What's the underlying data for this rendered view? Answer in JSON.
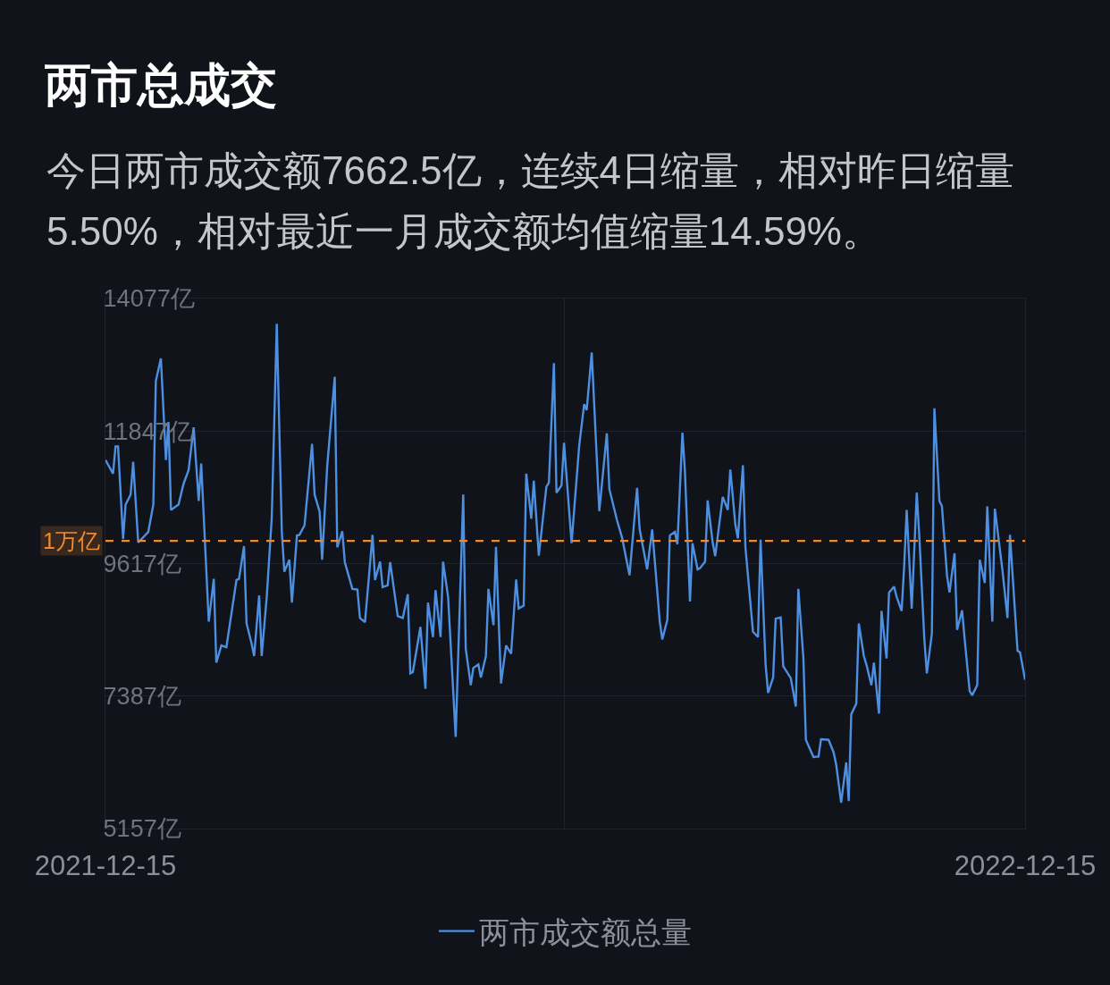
{
  "chart_data": {
    "type": "line",
    "title": "两市总成交",
    "subtitle": "今日两市成交额7662.5亿，连续4日缩量，相对昨日缩量5.50%，相对最近一月成交额均值缩量14.59%。",
    "x": [
      "2021-12-15",
      "2021-12-18",
      "2021-12-19",
      "2021-12-20",
      "2021-12-22",
      "2021-12-23",
      "2021-12-25",
      "2021-12-26",
      "2021-12-28",
      "2022-01-01",
      "2022-01-03",
      "2022-01-04",
      "2022-01-06",
      "2022-01-08",
      "2022-01-09",
      "2022-01-10",
      "2022-01-13",
      "2022-01-15",
      "2022-01-17",
      "2022-01-19",
      "2022-01-21",
      "2022-01-22",
      "2022-01-25",
      "2022-01-27",
      "2022-01-28",
      "2022-01-30",
      "2022-02-01",
      "2022-02-05",
      "2022-02-06",
      "2022-02-08",
      "2022-02-09",
      "2022-02-11",
      "2022-02-12",
      "2022-02-14",
      "2022-02-15",
      "2022-02-17",
      "2022-02-19",
      "2022-02-21",
      "2022-02-23",
      "2022-02-24",
      "2022-02-26",
      "2022-02-27",
      "2022-03-01",
      "2022-03-02",
      "2022-03-04",
      "2022-03-07",
      "2022-03-08",
      "2022-03-10",
      "2022-03-11",
      "2022-03-13",
      "2022-03-16",
      "2022-03-17",
      "2022-03-19",
      "2022-03-20",
      "2022-03-23",
      "2022-03-25",
      "2022-03-26",
      "2022-03-28",
      "2022-03-31",
      "2022-04-01",
      "2022-04-03",
      "2022-04-04",
      "2022-04-06",
      "2022-04-07",
      "2022-04-10",
      "2022-04-12",
      "2022-04-14",
      "2022-04-15",
      "2022-04-16",
      "2022-04-19",
      "2022-04-21",
      "2022-04-22",
      "2022-04-24",
      "2022-04-25",
      "2022-04-27",
      "2022-04-28",
      "2022-04-30",
      "2022-05-03",
      "2022-05-06",
      "2022-05-07",
      "2022-05-09",
      "2022-05-10",
      "2022-05-12",
      "2022-05-13",
      "2022-05-15",
      "2022-05-16",
      "2022-05-18",
      "2022-05-19",
      "2022-05-21",
      "2022-05-23",
      "2022-05-25",
      "2022-05-27",
      "2022-05-28",
      "2022-05-30",
      "2022-05-31",
      "2022-06-02",
      "2022-06-03",
      "2022-06-05",
      "2022-06-08",
      "2022-06-09",
      "2022-06-11",
      "2022-06-12",
      "2022-06-14",
      "2022-06-15",
      "2022-06-18",
      "2022-06-21",
      "2022-06-23",
      "2022-06-24",
      "2022-06-26",
      "2022-06-29",
      "2022-07-02",
      "2022-07-03",
      "2022-07-06",
      "2022-07-08",
      "2022-07-11",
      "2022-07-14",
      "2022-07-15",
      "2022-07-18",
      "2022-07-20",
      "2022-07-23",
      "2022-07-24",
      "2022-07-26",
      "2022-07-27",
      "2022-07-29",
      "2022-07-30",
      "2022-08-01",
      "2022-08-02",
      "2022-08-04",
      "2022-08-05",
      "2022-08-07",
      "2022-08-08",
      "2022-08-10",
      "2022-08-11",
      "2022-08-13",
      "2022-08-14",
      "2022-08-17",
      "2022-08-19",
      "2022-08-20",
      "2022-08-22",
      "2022-08-23",
      "2022-08-25",
      "2022-08-26",
      "2022-08-29",
      "2022-08-31",
      "2022-09-01",
      "2022-09-03",
      "2022-09-04",
      "2022-09-06",
      "2022-09-07",
      "2022-09-09",
      "2022-09-10",
      "2022-09-13",
      "2022-09-15",
      "2022-09-16",
      "2022-09-18",
      "2022-09-19",
      "2022-09-22",
      "2022-09-24",
      "2022-09-25",
      "2022-09-28",
      "2022-09-30",
      "2022-10-01",
      "2022-10-03",
      "2022-10-05",
      "2022-10-06",
      "2022-10-07",
      "2022-10-09",
      "2022-10-10",
      "2022-10-12",
      "2022-10-13",
      "2022-10-15",
      "2022-10-16",
      "2022-10-18",
      "2022-10-19",
      "2022-10-21",
      "2022-10-22",
      "2022-10-24",
      "2022-10-25",
      "2022-10-27",
      "2022-10-28",
      "2022-10-29",
      "2022-10-31",
      "2022-11-02",
      "2022-11-03",
      "2022-11-05",
      "2022-11-06",
      "2022-11-08",
      "2022-11-09",
      "2022-11-11",
      "2022-11-12",
      "2022-11-14",
      "2022-11-15",
      "2022-11-17",
      "2022-11-18",
      "2022-11-20",
      "2022-11-21",
      "2022-11-23",
      "2022-11-24",
      "2022-11-26",
      "2022-11-27",
      "2022-11-29",
      "2022-11-30",
      "2022-12-02",
      "2022-12-03",
      "2022-12-06",
      "2022-12-08",
      "2022-12-09",
      "2022-12-12",
      "2022-12-13",
      "2022-12-15"
    ],
    "series": [
      {
        "name": "两市成交额总量",
        "color": "#4d8fe0",
        "values": [
          11360,
          11130,
          11590,
          11590,
          10030,
          10610,
          10780,
          11330,
          9970,
          10150,
          10610,
          12690,
          13070,
          11360,
          12000,
          10520,
          10610,
          10960,
          11190,
          11910,
          10670,
          11300,
          8640,
          9360,
          7950,
          8240,
          8210,
          9340,
          9360,
          9910,
          8610,
          8270,
          8060,
          9080,
          8060,
          9050,
          10380,
          13650,
          10150,
          9480,
          9680,
          8960,
          10090,
          10100,
          10260,
          11630,
          10780,
          10490,
          9680,
          11250,
          12760,
          9890,
          10160,
          9640,
          9190,
          9180,
          8700,
          8630,
          10100,
          9340,
          9650,
          9220,
          9250,
          9640,
          8730,
          8700,
          9100,
          7770,
          7790,
          8550,
          7510,
          8960,
          8380,
          9170,
          8380,
          9650,
          9050,
          6700,
          10780,
          8180,
          7570,
          7860,
          7920,
          7700,
          8060,
          9190,
          8580,
          9900,
          7600,
          8240,
          8100,
          9350,
          8860,
          8910,
          11130,
          10370,
          11010,
          9750,
          10910,
          10980,
          12990,
          10810,
          10930,
          11650,
          9960,
          11590,
          12300,
          12200,
          13170,
          10500,
          11810,
          10870,
          10350,
          10060,
          9420,
          10890,
          10200,
          9520,
          10190,
          8640,
          8340,
          8670,
          10090,
          10150,
          9940,
          11820,
          11160,
          8980,
          9960,
          9520,
          9540,
          9650,
          10680,
          9970,
          9740,
          10740,
          10520,
          11200,
          10270,
          10040,
          11270,
          9890,
          8470,
          8380,
          10020,
          7920,
          7440,
          7700,
          8690,
          8710,
          7890,
          7690,
          7210,
          9190,
          8030,
          6650,
          6360,
          6370,
          6660,
          6650,
          6440,
          6240,
          5590,
          6270,
          5620,
          7080,
          7260,
          8610,
          8060,
          7920,
          7570,
          7950,
          7090,
          8820,
          8020,
          9130,
          9230,
          9060,
          8820,
          9570,
          10520,
          8860,
          10810,
          10090,
          8350,
          7770,
          8440,
          12230,
          10670,
          10580,
          9420,
          9130,
          9790,
          8500,
          8830,
          8350,
          7470,
          7400,
          7570,
          9680,
          9290,
          10580,
          8640,
          10540,
          9510,
          8700,
          10100,
          8150,
          8120,
          7660
        ]
      }
    ],
    "xlim": [
      "2021-12-15",
      "2022-12-15"
    ],
    "xticks": [
      "2021-12-15",
      {
        "value": "2022-06-15",
        "label": null
      },
      "2022-12-15"
    ],
    "ylim": [
      5157,
      14077
    ],
    "yticks": [
      {
        "value": 5157,
        "label": "5157亿"
      },
      {
        "value": 7387,
        "label": "7387亿"
      },
      {
        "value": 9617,
        "label": "9617亿"
      },
      {
        "value": 11847,
        "label": "11847亿"
      },
      {
        "value": 14077,
        "label": "14077亿"
      }
    ],
    "ref_lines": [
      {
        "axis": "y",
        "value": 10000,
        "label": "1万亿",
        "color": "#f08a32",
        "line_style": "dashed"
      }
    ],
    "grid": true,
    "legend": "bottom"
  }
}
